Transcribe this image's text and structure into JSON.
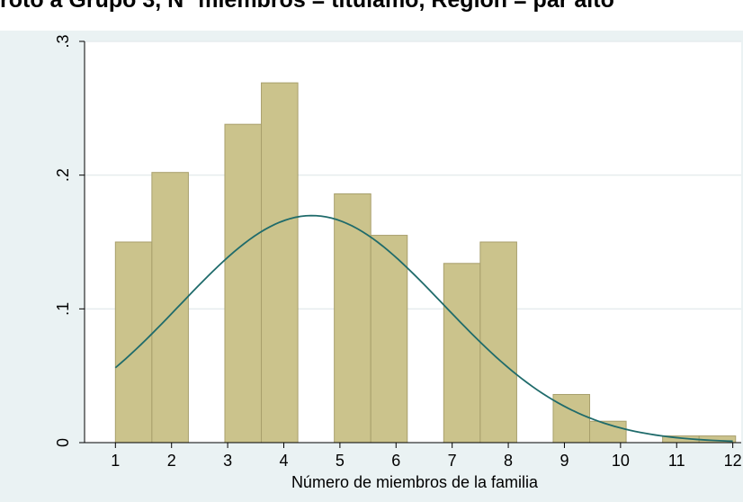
{
  "top_title_fragment": "roto a Grupo 3, Nº miembros = titulamo, Región = par alto",
  "chart_data": {
    "type": "bar",
    "title": "",
    "xlabel": "Número de miembros de la familia",
    "ylabel": "",
    "xlim": [
      0.45,
      12.15
    ],
    "ylim": [
      0,
      0.3
    ],
    "x_ticks": [
      1,
      2,
      3,
      4,
      5,
      6,
      7,
      8,
      9,
      10,
      11,
      12
    ],
    "y_ticks": [
      {
        "value": 0,
        "label": "0"
      },
      {
        "value": 0.1,
        "label": ".1"
      },
      {
        "value": 0.2,
        "label": ".2"
      },
      {
        "value": 0.3,
        "label": ".3"
      }
    ],
    "grid": true,
    "bars": [
      {
        "x0": 1.0,
        "x1": 1.65,
        "height": 0.15
      },
      {
        "x0": 1.65,
        "x1": 2.3,
        "height": 0.202
      },
      {
        "x0": 2.95,
        "x1": 3.6,
        "height": 0.238
      },
      {
        "x0": 3.6,
        "x1": 4.25,
        "height": 0.269
      },
      {
        "x0": 4.9,
        "x1": 5.55,
        "height": 0.186
      },
      {
        "x0": 5.55,
        "x1": 6.2,
        "height": 0.155
      },
      {
        "x0": 6.85,
        "x1": 7.5,
        "height": 0.134
      },
      {
        "x0": 7.5,
        "x1": 8.15,
        "height": 0.15
      },
      {
        "x0": 8.8,
        "x1": 9.45,
        "height": 0.036
      },
      {
        "x0": 9.45,
        "x1": 10.1,
        "height": 0.016
      },
      {
        "x0": 10.75,
        "x1": 11.4,
        "height": 0.005
      },
      {
        "x0": 11.4,
        "x1": 12.05,
        "height": 0.005
      }
    ],
    "normal_curve": {
      "mean": 4.5,
      "sd": 2.35,
      "x_range": [
        1,
        12
      ]
    },
    "colors": {
      "bar_fill": "#cbc38c",
      "bar_stroke": "#a89f6c",
      "curve": "#1f6b6b",
      "plot_bg": "#ffffff",
      "outer_bg": "#eaf2f3",
      "grid": "#e6ecee"
    }
  }
}
